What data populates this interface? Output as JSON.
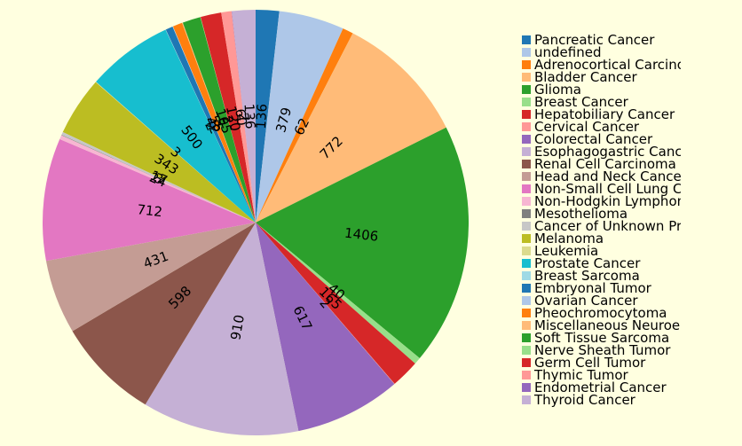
{
  "chart_data": {
    "type": "pie",
    "title": "",
    "legend_position": "right",
    "slices": [
      {
        "label": "Pancreatic Cancer",
        "value": 136,
        "color": "#1f77b4"
      },
      {
        "label": "undefined",
        "value": 379,
        "color": "#aec7e8"
      },
      {
        "label": "Adrenocortical Carcinoma",
        "value": 62,
        "color": "#ff7f0e"
      },
      {
        "label": "Bladder Cancer",
        "value": 772,
        "color": "#ffbb78"
      },
      {
        "label": "Glioma",
        "value": 1406,
        "color": "#2ca02c"
      },
      {
        "label": "Breast Cancer",
        "value": 40,
        "color": "#98df8a"
      },
      {
        "label": "Hepatobiliary Cancer",
        "value": 165,
        "color": "#d62728"
      },
      {
        "label": "Cervical Cancer",
        "value": 2,
        "color": "#ff9896"
      },
      {
        "label": "Colorectal Cancer",
        "value": 617,
        "color": "#9467bd"
      },
      {
        "label": "Esophagogastric Cancer",
        "value": 910,
        "color": "#c5b0d5"
      },
      {
        "label": "Renal Cell Carcinoma",
        "value": 598,
        "color": "#8c564b"
      },
      {
        "label": "Head and Neck Cancer",
        "value": 431,
        "color": "#c49c94"
      },
      {
        "label": "Non-Small Cell Lung Cancer",
        "value": 712,
        "color": "#e377c2"
      },
      {
        "label": "Non-Hodgkin Lymphoma",
        "value": 24,
        "color": "#f7b6d2"
      },
      {
        "label": "Mesothelioma",
        "value": 3,
        "color": "#7f7f7f"
      },
      {
        "label": "Cancer of Unknown Primary",
        "value": 17,
        "color": "#c7c7c7"
      },
      {
        "label": "Melanoma",
        "value": 343,
        "color": "#bcbd22"
      },
      {
        "label": "Leukemia",
        "value": 3,
        "color": "#dbdb8d"
      },
      {
        "label": "Prostate Cancer",
        "value": 500,
        "color": "#17becf"
      },
      {
        "label": "Breast Sarcoma",
        "value": 2,
        "color": "#9edae5"
      },
      {
        "label": "Embryonal Tumor",
        "value": 42,
        "color": "#1f77b4"
      },
      {
        "label": "Ovarian Cancer",
        "value": 3,
        "color": "#aec7e8"
      },
      {
        "label": "Pheochromocytoma",
        "value": 55,
        "color": "#ff7f0e"
      },
      {
        "label": "Miscellaneous Neuroepithelial Tumor",
        "value": 5,
        "color": "#ffbb78"
      },
      {
        "label": "Soft Tissue Sarcoma",
        "value": 105,
        "color": "#2ca02c"
      },
      {
        "label": "Nerve Sheath Tumor",
        "value": 2,
        "color": "#98df8a"
      },
      {
        "label": "Germ Cell Tumor",
        "value": 120,
        "color": "#d62728"
      },
      {
        "label": "Thymic Tumor",
        "value": 60,
        "color": "#ff9896"
      },
      {
        "label": "Endometrial Cancer",
        "value": 2,
        "color": "#9467bd"
      },
      {
        "label": "Thyroid Cancer",
        "value": 136,
        "color": "#c5b0d5"
      }
    ]
  }
}
